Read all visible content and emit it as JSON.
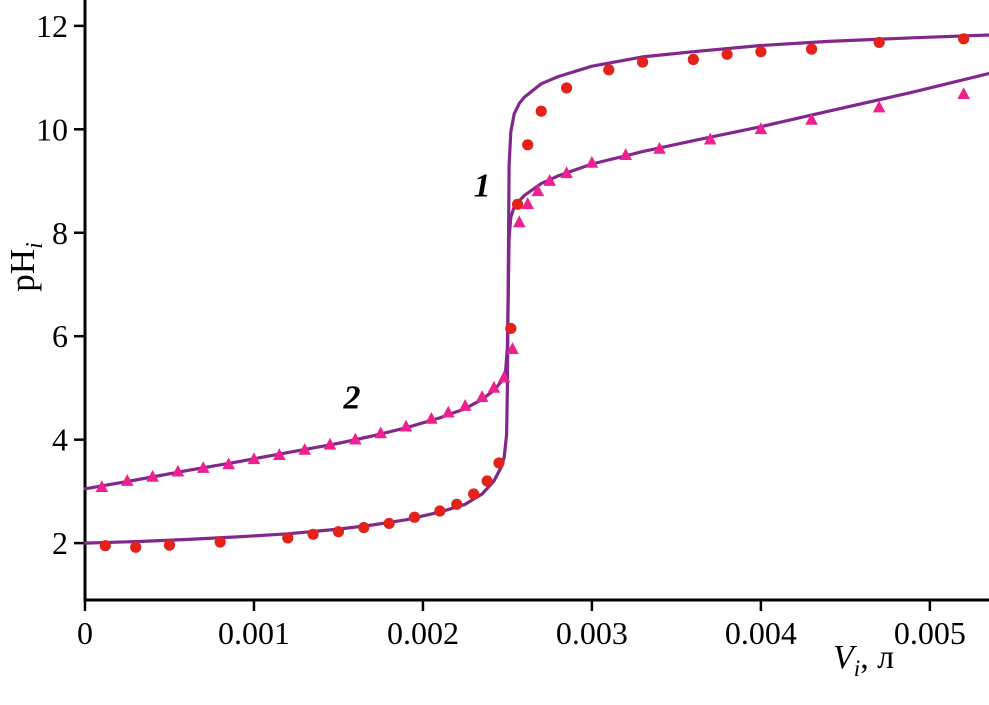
{
  "figure": {
    "background": "#ffffff",
    "axis_color": "#000000"
  },
  "chart_data": {
    "type": "line",
    "description": "Two potentiometric titration curves: pH_i versus titrant volume V_i (liters). Curve 1 (red circles) is a strong-acid-type curve with a sharp equivalence jump near V = 0.0025 L; curve 2 (pink triangles) is a weak-acid-type curve with a smaller jump at the same volume. Purple lines are fitted/calculated curves.",
    "title": "",
    "xlabel": "Vi, л",
    "xlabel_parts": {
      "main": "V",
      "sub": "i",
      "suffix": ", л"
    },
    "ylabel": "pHi",
    "ylabel_parts": {
      "main": "pH",
      "sub": "i"
    },
    "xlim": [
      0,
      0.00535
    ],
    "ylim": [
      0.9,
      12.5
    ],
    "x_ticks": [
      0,
      0.001,
      0.002,
      0.003,
      0.004,
      0.005
    ],
    "x_tick_labels": [
      "0",
      "0.001",
      "0.002",
      "0.003",
      "0.004",
      "0.005"
    ],
    "y_ticks": [
      2,
      4,
      6,
      8,
      10,
      12
    ],
    "y_tick_labels": [
      "2",
      "4",
      "6",
      "8",
      "10",
      "12"
    ],
    "grid": false,
    "legend": null,
    "line_color": "#82288c",
    "series": [
      {
        "name": "curve-1-fit-line",
        "type": "line",
        "color": "#82288c",
        "points": [
          [
            0,
            2.0
          ],
          [
            0.0003,
            2.03
          ],
          [
            0.0006,
            2.07
          ],
          [
            0.0009,
            2.12
          ],
          [
            0.0012,
            2.18
          ],
          [
            0.0015,
            2.27
          ],
          [
            0.0017,
            2.35
          ],
          [
            0.0019,
            2.45
          ],
          [
            0.0021,
            2.6
          ],
          [
            0.00225,
            2.75
          ],
          [
            0.00235,
            2.95
          ],
          [
            0.00242,
            3.2
          ],
          [
            0.00246,
            3.45
          ],
          [
            0.00248,
            3.65
          ],
          [
            0.002495,
            4.1
          ],
          [
            0.0025,
            5.0
          ],
          [
            0.00251,
            9.3
          ],
          [
            0.00252,
            9.95
          ],
          [
            0.00254,
            10.3
          ],
          [
            0.00257,
            10.5
          ],
          [
            0.0026,
            10.62
          ],
          [
            0.0027,
            10.88
          ],
          [
            0.0028,
            11.02
          ],
          [
            0.003,
            11.22
          ],
          [
            0.0033,
            11.4
          ],
          [
            0.0036,
            11.5
          ],
          [
            0.004,
            11.62
          ],
          [
            0.0044,
            11.7
          ],
          [
            0.0049,
            11.77
          ],
          [
            0.0054,
            11.83
          ]
        ]
      },
      {
        "name": "curve-2-fit-line",
        "type": "line",
        "color": "#82288c",
        "points": [
          [
            0,
            3.05
          ],
          [
            0.0003,
            3.22
          ],
          [
            0.0006,
            3.4
          ],
          [
            0.0009,
            3.57
          ],
          [
            0.0012,
            3.75
          ],
          [
            0.0015,
            3.93
          ],
          [
            0.0017,
            4.07
          ],
          [
            0.0019,
            4.23
          ],
          [
            0.0021,
            4.42
          ],
          [
            0.00225,
            4.6
          ],
          [
            0.00235,
            4.78
          ],
          [
            0.00242,
            4.95
          ],
          [
            0.00247,
            5.15
          ],
          [
            0.00249,
            5.35
          ],
          [
            0.0025,
            5.8
          ],
          [
            0.00251,
            7.9
          ],
          [
            0.00252,
            8.3
          ],
          [
            0.00254,
            8.5
          ],
          [
            0.00258,
            8.65
          ],
          [
            0.0026,
            8.72
          ],
          [
            0.0027,
            8.95
          ],
          [
            0.0028,
            9.1
          ],
          [
            0.003,
            9.33
          ],
          [
            0.0033,
            9.57
          ],
          [
            0.0036,
            9.78
          ],
          [
            0.004,
            10.05
          ],
          [
            0.0044,
            10.35
          ],
          [
            0.0049,
            10.72
          ],
          [
            0.0054,
            11.12
          ]
        ]
      },
      {
        "name": "curve-1-experimental-points",
        "type": "scatter",
        "marker": "circle",
        "color": "#e32219",
        "points": [
          [
            0.00012,
            1.95
          ],
          [
            0.0003,
            1.92
          ],
          [
            0.0005,
            1.96
          ],
          [
            0.0008,
            2.02
          ],
          [
            0.0012,
            2.1
          ],
          [
            0.00135,
            2.17
          ],
          [
            0.0015,
            2.22
          ],
          [
            0.00165,
            2.3
          ],
          [
            0.0018,
            2.38
          ],
          [
            0.00195,
            2.5
          ],
          [
            0.0021,
            2.62
          ],
          [
            0.0022,
            2.75
          ],
          [
            0.0023,
            2.95
          ],
          [
            0.00238,
            3.2
          ],
          [
            0.00245,
            3.55
          ],
          [
            0.00252,
            6.15
          ],
          [
            0.00256,
            8.55
          ],
          [
            0.00262,
            9.7
          ],
          [
            0.0027,
            10.35
          ],
          [
            0.00285,
            10.8
          ],
          [
            0.0031,
            11.15
          ],
          [
            0.0033,
            11.3
          ],
          [
            0.0036,
            11.35
          ],
          [
            0.0038,
            11.45
          ],
          [
            0.004,
            11.5
          ],
          [
            0.0043,
            11.55
          ],
          [
            0.0047,
            11.68
          ],
          [
            0.0052,
            11.75
          ]
        ]
      },
      {
        "name": "curve-2-experimental-points",
        "type": "scatter",
        "marker": "triangle",
        "color": "#ef218e",
        "points": [
          [
            0.0001,
            3.08
          ],
          [
            0.00025,
            3.2
          ],
          [
            0.0004,
            3.28
          ],
          [
            0.00055,
            3.38
          ],
          [
            0.0007,
            3.45
          ],
          [
            0.00085,
            3.52
          ],
          [
            0.001,
            3.62
          ],
          [
            0.00115,
            3.7
          ],
          [
            0.0013,
            3.8
          ],
          [
            0.00145,
            3.9
          ],
          [
            0.0016,
            4.0
          ],
          [
            0.00175,
            4.12
          ],
          [
            0.0019,
            4.25
          ],
          [
            0.00205,
            4.4
          ],
          [
            0.00215,
            4.52
          ],
          [
            0.00225,
            4.65
          ],
          [
            0.00235,
            4.82
          ],
          [
            0.00242,
            5.0
          ],
          [
            0.00248,
            5.2
          ],
          [
            0.00253,
            5.75
          ],
          [
            0.00257,
            8.2
          ],
          [
            0.00262,
            8.55
          ],
          [
            0.00268,
            8.8
          ],
          [
            0.00275,
            9.0
          ],
          [
            0.00285,
            9.15
          ],
          [
            0.003,
            9.35
          ],
          [
            0.0032,
            9.5
          ],
          [
            0.0034,
            9.62
          ],
          [
            0.0037,
            9.8
          ],
          [
            0.004,
            10.0
          ],
          [
            0.0043,
            10.18
          ],
          [
            0.0047,
            10.42
          ],
          [
            0.0052,
            10.68
          ]
        ]
      }
    ],
    "annotations": [
      {
        "label": "1",
        "x": 0.00235,
        "y": 8.7
      },
      {
        "label": "2",
        "x": 0.00158,
        "y": 4.6
      }
    ]
  }
}
